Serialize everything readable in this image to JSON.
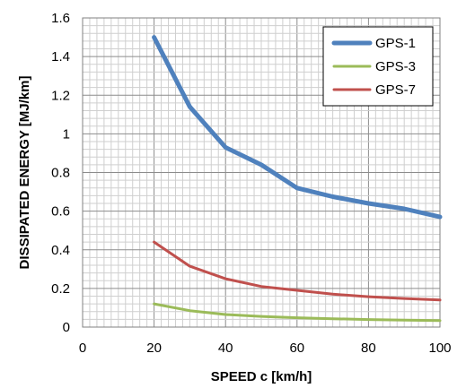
{
  "chart_data": {
    "type": "line",
    "title": "",
    "xlabel": "SPEED c [km/h]",
    "ylabel": "DISSIPATED ENERGY [MJ/km]",
    "xlim": [
      0,
      100
    ],
    "ylim": [
      0,
      1.6
    ],
    "x_ticks": [
      0,
      20,
      40,
      60,
      80,
      100
    ],
    "y_ticks": [
      0,
      0.2,
      0.4,
      0.6,
      0.8,
      1,
      1.2,
      1.4,
      1.6
    ],
    "y_tick_labels": [
      "0",
      "0.2",
      "0.4",
      "0.6",
      "0.8",
      "1",
      "1.2",
      "1.4",
      "1.6"
    ],
    "grid": true,
    "legend_position": "top-right",
    "series": [
      {
        "name": "GPS-1",
        "color": "#4F81BD",
        "x": [
          20,
          30,
          40,
          50,
          60,
          70,
          80,
          90,
          100
        ],
        "y": [
          1.5,
          1.14,
          0.93,
          0.84,
          0.72,
          0.675,
          0.64,
          0.612,
          0.57
        ]
      },
      {
        "name": "GPS-3",
        "color": "#9BBB59",
        "x": [
          20,
          30,
          40,
          50,
          60,
          70,
          80,
          90,
          100
        ],
        "y": [
          0.12,
          0.085,
          0.065,
          0.055,
          0.048,
          0.043,
          0.039,
          0.036,
          0.034
        ]
      },
      {
        "name": "GPS-7",
        "color": "#C0504D",
        "x": [
          20,
          30,
          40,
          50,
          60,
          70,
          80,
          90,
          100
        ],
        "y": [
          0.44,
          0.315,
          0.25,
          0.21,
          0.19,
          0.17,
          0.157,
          0.148,
          0.14
        ]
      }
    ]
  }
}
